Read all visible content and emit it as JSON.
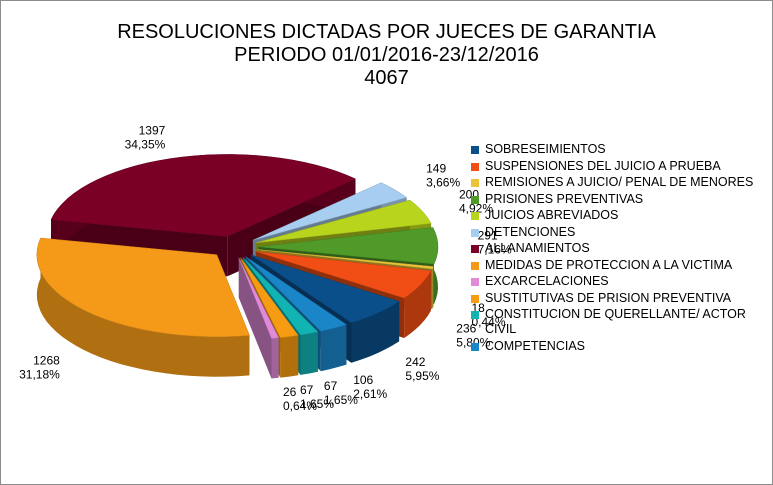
{
  "chart_data": {
    "type": "pie",
    "title": [
      "RESOLUCIONES DICTADAS POR JUECES DE GARANTIA",
      "PERIODO 01/01/2016-23/12/2016",
      "4067"
    ],
    "total": 4067,
    "style": "3d exploded",
    "legend_position": "right",
    "slices": [
      {
        "name": "SOBRESEIMIENTOS",
        "value": 242,
        "percent": "5,95%",
        "color": "#0b4f8a"
      },
      {
        "name": "SUSPENSIONES DEL JUICIO A PRUEBA",
        "value": 236,
        "percent": "5,80%",
        "color": "#f04e14"
      },
      {
        "name": "REMISIONES A JUICIO/ PENAL DE MENORES",
        "value": 18,
        "percent": "0,44%",
        "color": "#e9c338"
      },
      {
        "name": "PRISIONES PREVENTIVAS",
        "value": 291,
        "percent": "7,16%",
        "color": "#4f9a29"
      },
      {
        "name": "JUICIOS ABREVIADOS",
        "value": 200,
        "percent": "4,92%",
        "color": "#b9d41c"
      },
      {
        "name": "DETENCIONES",
        "value": 149,
        "percent": "3,66%",
        "color": "#a7cdf0"
      },
      {
        "name": "ALLANAMIENTOS",
        "value": 1397,
        "percent": "34,35%",
        "color": "#7a0026"
      },
      {
        "name": "MEDIDAS DE PROTECCION A LA VICTIMA",
        "value": 1268,
        "percent": "31,18%",
        "color": "#f59a18"
      },
      {
        "name": "EXCARCELACIONES",
        "value": 26,
        "percent": "0,64%",
        "color": "#e08ad8"
      },
      {
        "name": "SUSTITUTIVAS DE PRISION PREVENTIVA",
        "value": 67,
        "percent": "1,65%",
        "color": "#f79c12"
      },
      {
        "name": "CONSTITUCION DE QUERELLANTE/ ACTOR CIVIL",
        "value": 67,
        "percent": "1,65%",
        "color": "#12b3b3"
      },
      {
        "name": "COMPETENCIAS",
        "value": 106,
        "percent": "2,61%",
        "color": "#1a86c8"
      }
    ],
    "legend": [
      {
        "label": "SOBRESEIMIENTOS",
        "color": "#0b4f8a"
      },
      {
        "label": "SUSPENSIONES DEL JUICIO A PRUEBA",
        "color": "#f04e14"
      },
      {
        "label": "REMISIONES A JUICIO/ PENAL DE MENORES",
        "color": "#e9c338"
      },
      {
        "label": "PRISIONES PREVENTIVAS",
        "color": "#4f9a29"
      },
      {
        "label": "JUICIOS ABREVIADOS",
        "color": "#b9d41c"
      },
      {
        "label": "DETENCIONES",
        "color": "#a7cdf0"
      },
      {
        "label": "ALLANAMIENTOS",
        "color": "#7a0026"
      },
      {
        "label": "MEDIDAS DE PROTECCION A LA VICTIMA",
        "color": "#f59a18"
      },
      {
        "label": "EXCARCELACIONES",
        "color": "#e08ad8"
      },
      {
        "label": "SUSTITUTIVAS DE PRISION PREVENTIVA",
        "color": "#f79c12"
      },
      {
        "label": "CONSTITUCION DE QUERELLANTE/ ACTOR CIVIL",
        "color": "#12b3b3"
      },
      {
        "label": "COMPETENCIAS",
        "color": "#1a86c8"
      }
    ]
  }
}
